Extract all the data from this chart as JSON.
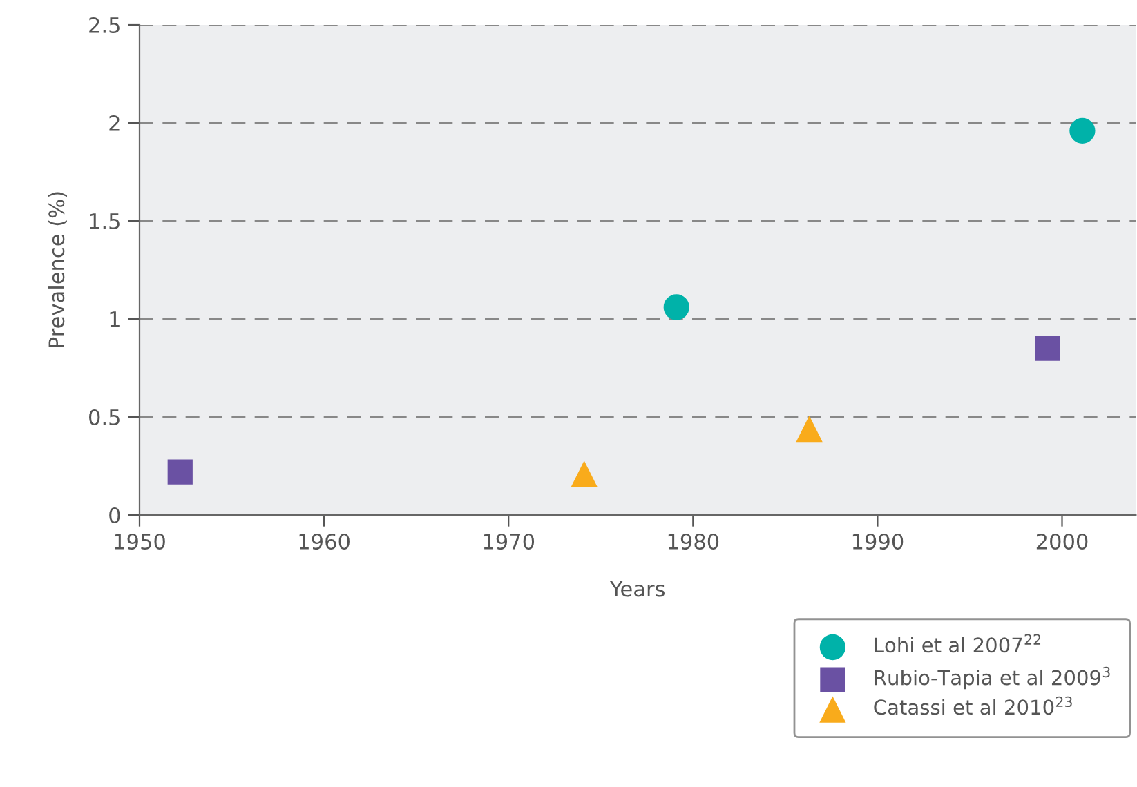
{
  "chart_data": {
    "type": "scatter",
    "xlabel": "Years",
    "ylabel": "Prevalence (%)",
    "xlim": [
      1950,
      2004
    ],
    "xticks": [
      1950,
      1960,
      1970,
      1980,
      1990,
      2000
    ],
    "ylim": [
      0,
      2.5
    ],
    "yticks": [
      0,
      0.5,
      1,
      1.5,
      2,
      2.5
    ],
    "grid": "y",
    "legend": "bottom right",
    "series": [
      {
        "name": "Lohi et al 2007$^{22}$",
        "color": "#00b2a9",
        "marker": "circle",
        "x": [
          1979.1,
          2001.1
        ],
        "values": [
          1.06,
          1.96
        ]
      },
      {
        "name": "Rubio-Tapia et al 2009$^{3}$",
        "color": "#6a51a3",
        "marker": "square",
        "x": [
          1952.2,
          1999.2
        ],
        "values": [
          0.22,
          0.85
        ]
      },
      {
        "name": "Catassi et al 2010$^{23}$",
        "color": "#f9ab1b",
        "marker": "triangle",
        "x": [
          1974.1,
          1986.3
        ],
        "values": [
          0.21,
          0.44
        ]
      }
    ]
  }
}
